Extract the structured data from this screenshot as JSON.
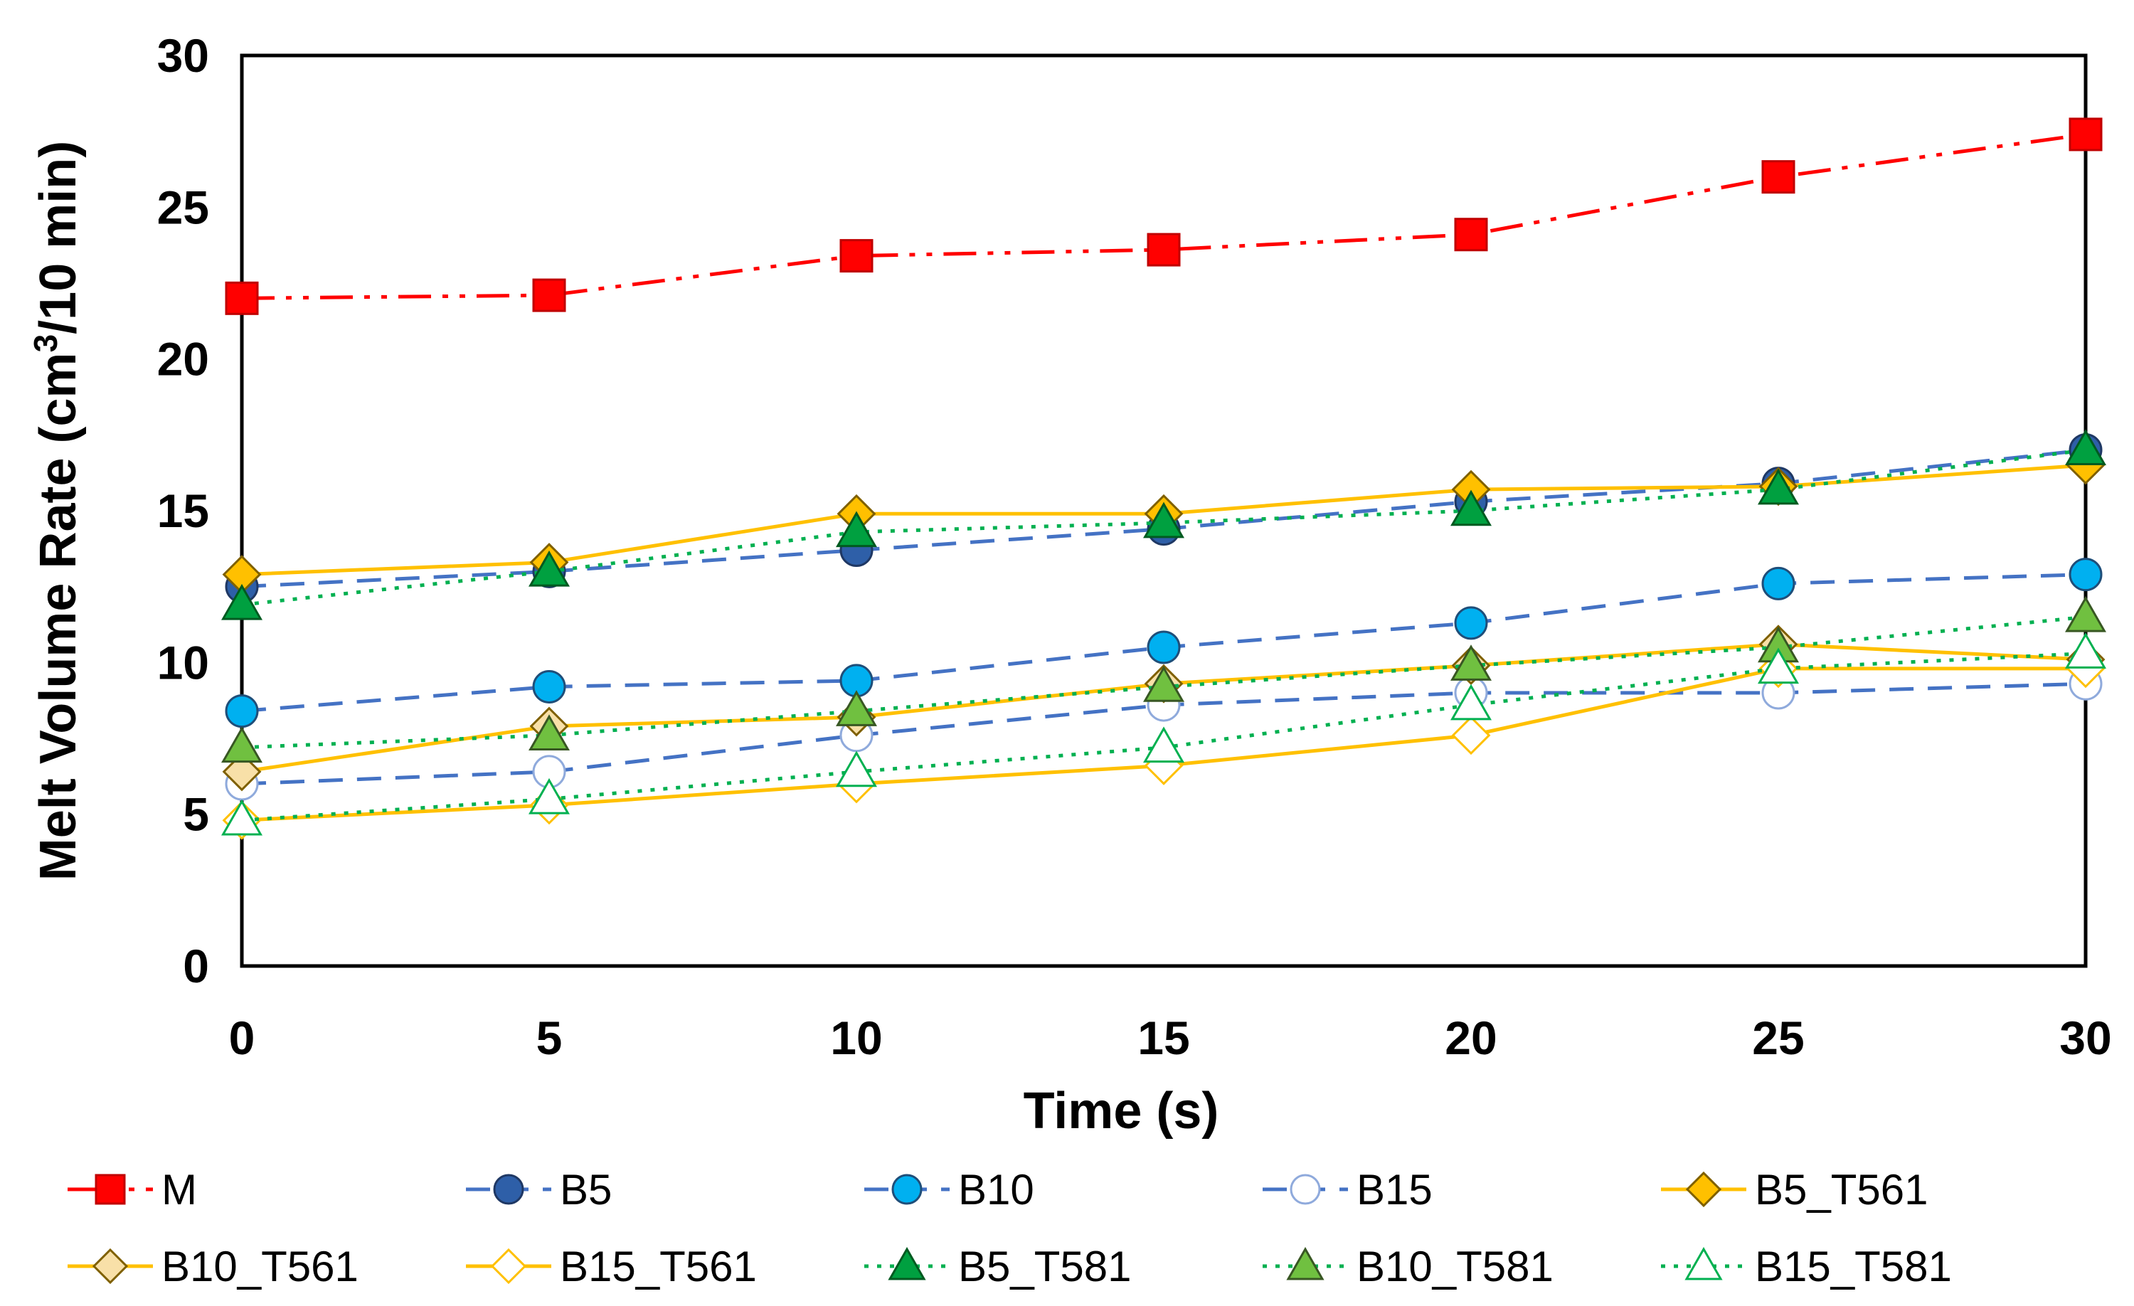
{
  "chart_data": {
    "type": "line",
    "title": "",
    "xlabel": "Time (s)",
    "ylabel_main": "Melt Volume Rate (cm",
    "ylabel_sup": "3",
    "ylabel_tail": "/10 min)",
    "x": [
      0,
      5,
      10,
      15,
      20,
      25,
      30
    ],
    "xlim": [
      0,
      30
    ],
    "ylim": [
      0,
      30
    ],
    "xticks": [
      0,
      5,
      10,
      15,
      20,
      25,
      30
    ],
    "yticks": [
      0,
      5,
      10,
      15,
      20,
      25,
      30
    ],
    "grid": false,
    "legend_position": "bottom",
    "series": [
      {
        "name": "M",
        "values": [
          22.0,
          22.1,
          23.4,
          23.6,
          24.1,
          26.0,
          27.4
        ],
        "line_color": "#ff0000",
        "line_style": "dashdotdot",
        "marker": "square",
        "marker_fill": "#ff0000",
        "marker_edge": "#c00000"
      },
      {
        "name": "B5",
        "values": [
          12.5,
          13.0,
          13.7,
          14.4,
          15.3,
          15.9,
          17.0
        ],
        "line_color": "#4472c4",
        "line_style": "dash",
        "marker": "circle",
        "marker_fill": "#2e5fa8",
        "marker_edge": "#1f3864"
      },
      {
        "name": "B10",
        "values": [
          8.4,
          9.2,
          9.4,
          10.5,
          11.3,
          12.6,
          12.9
        ],
        "line_color": "#4472c4",
        "line_style": "dash",
        "marker": "circle",
        "marker_fill": "#00b0f0",
        "marker_edge": "#1f4e79"
      },
      {
        "name": "B15",
        "values": [
          6.0,
          6.4,
          7.6,
          8.6,
          9.0,
          9.0,
          9.3
        ],
        "line_color": "#4472c4",
        "line_style": "dash",
        "marker": "circle",
        "marker_fill": "#ffffff",
        "marker_edge": "#8faadc"
      },
      {
        "name": "B5_T561",
        "values": [
          12.9,
          13.3,
          14.9,
          14.9,
          15.7,
          15.8,
          16.5
        ],
        "line_color": "#ffc000",
        "line_style": "solid",
        "marker": "diamond",
        "marker_fill": "#ffc000",
        "marker_edge": "#7f6000"
      },
      {
        "name": "B10_T561",
        "values": [
          6.4,
          7.9,
          8.2,
          9.3,
          9.9,
          10.6,
          10.1
        ],
        "line_color": "#ffc000",
        "line_style": "solid",
        "marker": "diamond",
        "marker_fill": "#f8e0a8",
        "marker_edge": "#7f6000"
      },
      {
        "name": "B15_T561",
        "values": [
          4.8,
          5.3,
          6.0,
          6.6,
          7.6,
          9.8,
          9.8
        ],
        "line_color": "#ffc000",
        "line_style": "solid",
        "marker": "diamond",
        "marker_fill": "#ffffff",
        "marker_edge": "#ffc000"
      },
      {
        "name": "B5_T581",
        "values": [
          11.9,
          13.0,
          14.3,
          14.6,
          15.0,
          15.7,
          17.0
        ],
        "line_color": "#00b050",
        "line_style": "dot",
        "marker": "triangle",
        "marker_fill": "#00a040",
        "marker_edge": "#005a20"
      },
      {
        "name": "B10_T581",
        "values": [
          7.2,
          7.6,
          8.4,
          9.2,
          9.9,
          10.5,
          11.5
        ],
        "line_color": "#00b050",
        "line_style": "dot",
        "marker": "triangle",
        "marker_fill": "#70c040",
        "marker_edge": "#385723"
      },
      {
        "name": "B15_T581",
        "values": [
          4.8,
          5.5,
          6.4,
          7.2,
          8.6,
          9.8,
          10.3
        ],
        "line_color": "#00b050",
        "line_style": "dot",
        "marker": "triangle",
        "marker_fill": "#ffffff",
        "marker_edge": "#00b050"
      }
    ]
  }
}
